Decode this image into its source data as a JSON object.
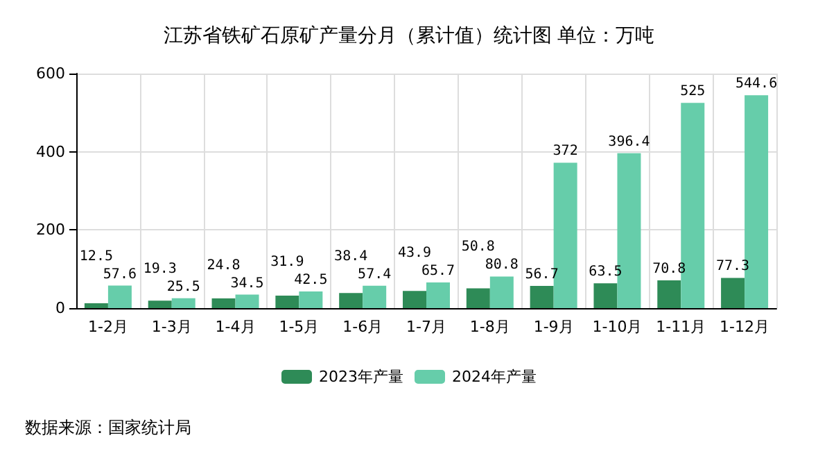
{
  "chart_data": {
    "type": "bar",
    "title": "江苏省铁矿石原矿产量分月（累计值）统计图 单位：万吨",
    "categories": [
      "1-2月",
      "1-3月",
      "1-4月",
      "1-5月",
      "1-6月",
      "1-7月",
      "1-8月",
      "1-9月",
      "1-10月",
      "1-11月",
      "1-12月"
    ],
    "series": [
      {
        "name": "2023年产量",
        "color": "#2e8b57",
        "values": [
          12.5,
          19.3,
          24.8,
          31.9,
          38.4,
          43.9,
          50.8,
          56.7,
          63.5,
          70.8,
          77.3
        ]
      },
      {
        "name": "2024年产量",
        "color": "#66cdaa",
        "values": [
          57.6,
          25.5,
          34.5,
          42.5,
          57.4,
          65.7,
          80.8,
          372,
          396.4,
          525,
          544.6
        ]
      }
    ],
    "ylim": [
      0,
      600
    ],
    "yticks": [
      0,
      200,
      400,
      600
    ],
    "grid": true,
    "legend": "bottom",
    "data_labels": true,
    "annotations": [
      "数据来源：国家统计局"
    ]
  }
}
